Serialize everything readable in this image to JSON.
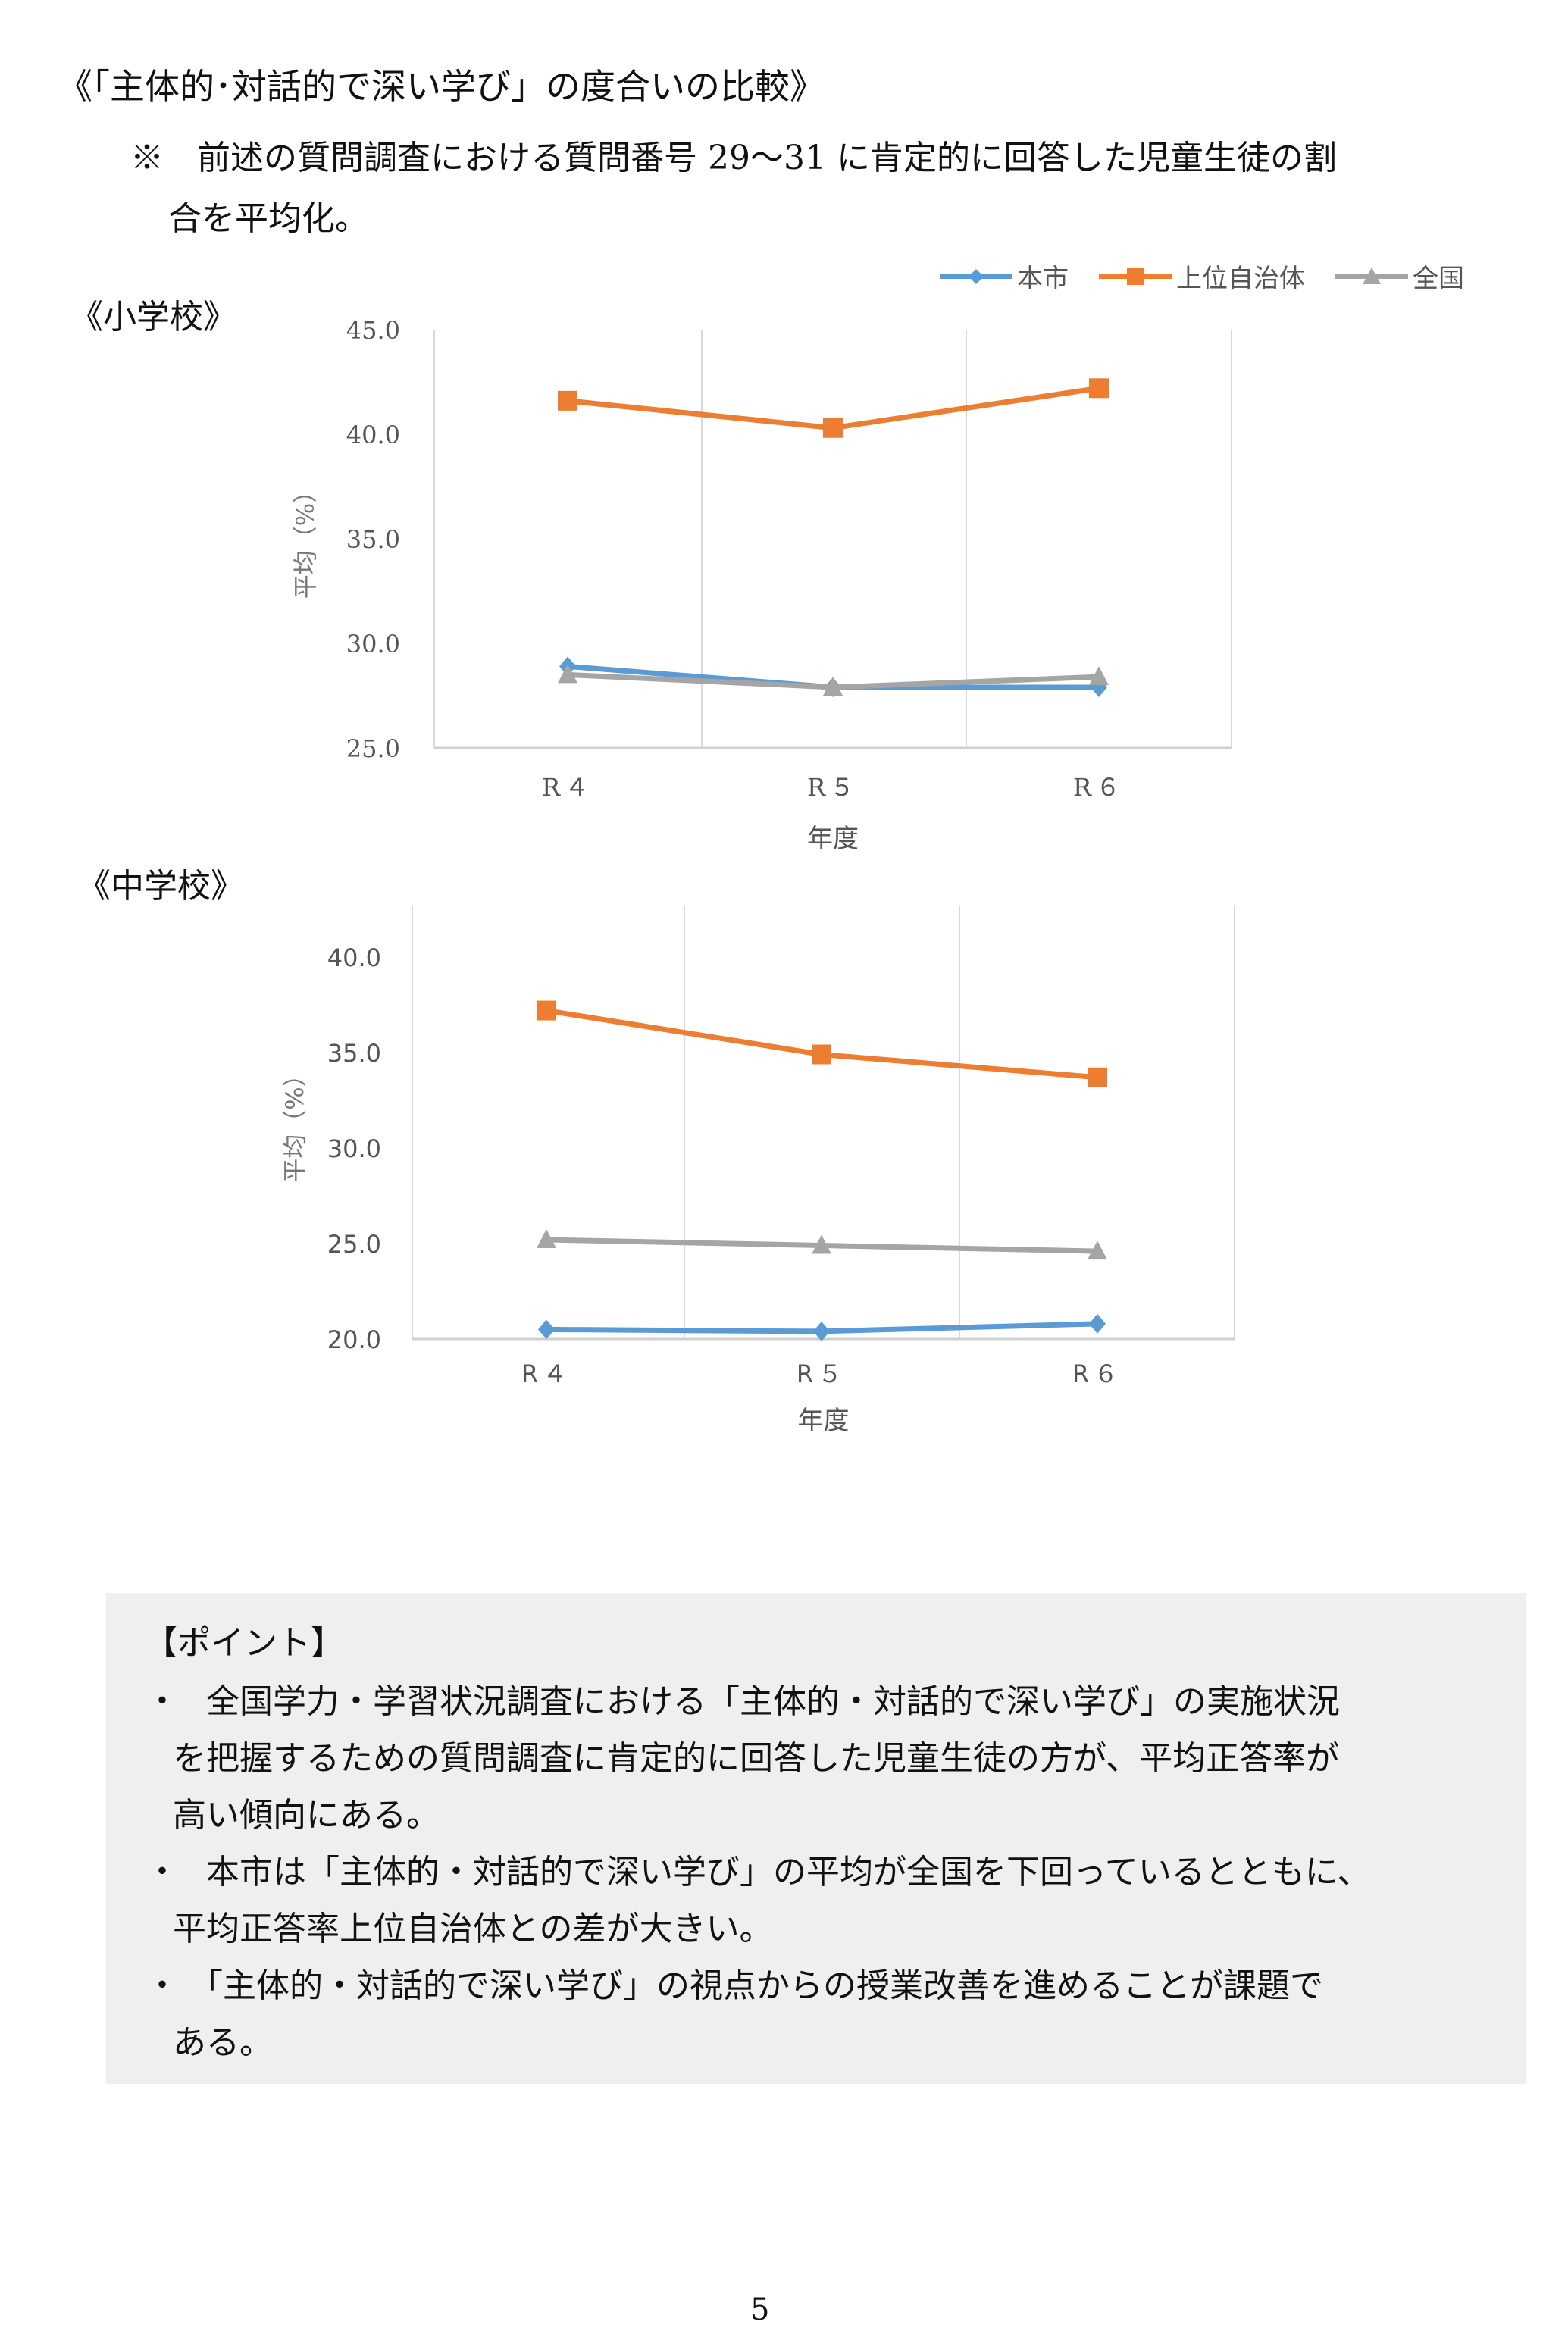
{
  "title": "《「主体的･対話的で深い学び」の度合いの比較》",
  "note": {
    "line1": "※　前述の質問調査における質問番号 29～31 に肯定的に回答した児童生徒の割",
    "line2": "合を平均化。"
  },
  "legend": [
    {
      "label": "本市",
      "color": "#5b9bd5",
      "marker": "diamond"
    },
    {
      "label": "上位自治体",
      "color": "#ed7d31",
      "marker": "square"
    },
    {
      "label": "全国",
      "color": "#a5a5a5",
      "marker": "triangle"
    }
  ],
  "chart_data": [
    {
      "type": "line",
      "title": "《小学校》",
      "xlabel": "年度",
      "ylabel": "平均（%）",
      "categories": [
        "R４",
        "R５",
        "R６"
      ],
      "ylim": [
        25,
        45
      ],
      "yticks": [
        "25.0",
        "30.0",
        "35.0",
        "40.0",
        "45.0"
      ],
      "series": [
        {
          "name": "本市",
          "values": [
            28.9,
            27.9,
            27.9
          ]
        },
        {
          "name": "上位自治体",
          "values": [
            41.6,
            40.3,
            42.2
          ]
        },
        {
          "name": "全国",
          "values": [
            28.5,
            27.9,
            28.4
          ]
        }
      ]
    },
    {
      "type": "line",
      "title": "《中学校》",
      "xlabel": "年度",
      "ylabel": "平均（%）",
      "categories": [
        "R４",
        "R５",
        "R６"
      ],
      "ylim": [
        20,
        40
      ],
      "yticks": [
        "20.0",
        "25.0",
        "30.0",
        "35.0",
        "40.0"
      ],
      "series": [
        {
          "name": "本市",
          "values": [
            20.5,
            20.4,
            20.8
          ]
        },
        {
          "name": "上位自治体",
          "values": [
            37.2,
            34.9,
            33.7
          ]
        },
        {
          "name": "全国",
          "values": [
            25.2,
            24.9,
            24.6
          ]
        }
      ]
    }
  ],
  "point": {
    "heading": "【ポイント】",
    "bullet": "・",
    "items": [
      {
        "lines": [
          "　全国学力・学習状況調査における「主体的・対話的で深い学び」の実施状況",
          "を把握するための質問調査に肯定的に回答した児童生徒の方が、平均正答率が",
          "高い傾向にある。"
        ]
      },
      {
        "lines": [
          "　本市は「主体的・対話的で深い学び」の平均が全国を下回っているとともに、",
          "平均正答率上位自治体との差が大きい。"
        ]
      },
      {
        "lines": [
          "　「主体的・対話的で深い学び」の視点からの授業改善を進めることが課題で",
          "ある。"
        ]
      }
    ]
  },
  "page_number": "5"
}
